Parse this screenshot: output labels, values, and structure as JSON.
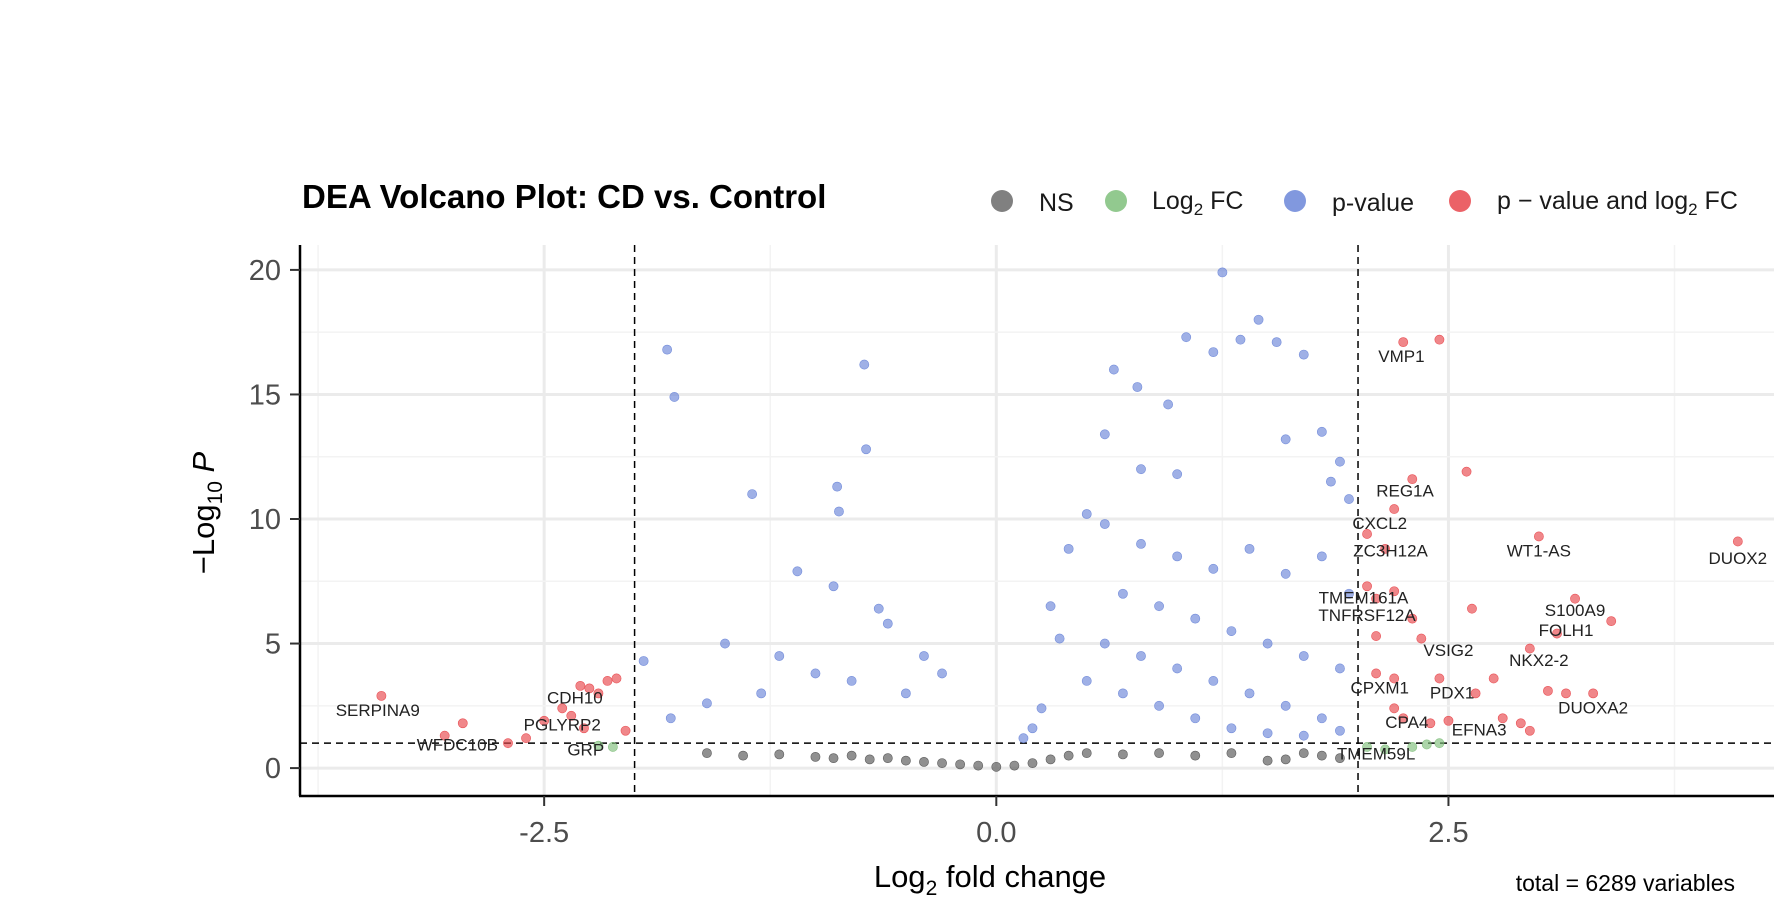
{
  "chart_data": {
    "type": "scatter",
    "title": "DEA Volcano Plot: CD vs. Control",
    "xlabel": "Log",
    "xlabel_sub": "2",
    "xlabel_tail": " fold change",
    "ylabel": "−Log",
    "ylabel_sub": "10",
    "ylabel_tail": " P",
    "xlim": [
      -3.85,
      4.3
    ],
    "ylim": [
      -1.0,
      21.0
    ],
    "x_ticks": [
      -2.5,
      0.0,
      2.5
    ],
    "x_tick_labels": [
      "-2.5",
      "0.0",
      "2.5"
    ],
    "y_ticks": [
      0,
      5,
      10,
      15,
      20
    ],
    "y_tick_labels": [
      "0",
      "5",
      "10",
      "15",
      "20"
    ],
    "grid": true,
    "legend_position": "top",
    "fc_cutoff": 2.0,
    "p_cutoff_neglog10": 1.0,
    "caption": "total = 6289 variables",
    "total_variables": 6289,
    "series": [
      {
        "name": "NS",
        "color": "#555555",
        "points": [
          [
            -1.6,
            0.6
          ],
          [
            -1.4,
            0.5
          ],
          [
            -1.2,
            0.55
          ],
          [
            -1.0,
            0.45
          ],
          [
            -0.9,
            0.4
          ],
          [
            -0.8,
            0.5
          ],
          [
            -0.7,
            0.35
          ],
          [
            -0.6,
            0.4
          ],
          [
            -0.5,
            0.3
          ],
          [
            -0.4,
            0.25
          ],
          [
            -0.3,
            0.2
          ],
          [
            -0.2,
            0.15
          ],
          [
            -0.1,
            0.1
          ],
          [
            0.0,
            0.05
          ],
          [
            0.1,
            0.1
          ],
          [
            0.2,
            0.2
          ],
          [
            0.3,
            0.35
          ],
          [
            0.4,
            0.5
          ],
          [
            0.5,
            0.6
          ],
          [
            0.7,
            0.55
          ],
          [
            0.9,
            0.6
          ],
          [
            1.1,
            0.5
          ],
          [
            1.3,
            0.6
          ],
          [
            1.5,
            0.3
          ],
          [
            1.6,
            0.35
          ],
          [
            1.7,
            0.6
          ],
          [
            1.8,
            0.5
          ],
          [
            1.9,
            0.4
          ]
        ]
      },
      {
        "name": "Log",
        "name_sub": "2",
        "name_tail": " FC",
        "color": "#7fbf7b",
        "points": [
          [
            -2.12,
            0.85
          ],
          [
            -2.2,
            0.9
          ],
          [
            2.05,
            0.85
          ],
          [
            2.15,
            0.75
          ],
          [
            2.3,
            0.85
          ],
          [
            2.45,
            1.0
          ],
          [
            2.38,
            0.95
          ]
        ]
      },
      {
        "name": "p-value",
        "color": "#6b86d8",
        "points": [
          [
            -1.82,
            16.8
          ],
          [
            -1.78,
            14.9
          ],
          [
            -0.73,
            16.2
          ],
          [
            -0.72,
            12.8
          ],
          [
            -1.35,
            11.0
          ],
          [
            -0.88,
            11.3
          ],
          [
            -0.87,
            10.3
          ],
          [
            -1.1,
            7.9
          ],
          [
            -0.9,
            7.3
          ],
          [
            -0.65,
            6.4
          ],
          [
            -1.5,
            5.0
          ],
          [
            -1.95,
            4.3
          ],
          [
            -1.2,
            4.5
          ],
          [
            -0.6,
            5.8
          ],
          [
            -0.4,
            4.5
          ],
          [
            -0.3,
            3.8
          ],
          [
            -0.5,
            3.0
          ],
          [
            -0.8,
            3.5
          ],
          [
            -1.0,
            3.8
          ],
          [
            -1.3,
            3.0
          ],
          [
            -1.6,
            2.6
          ],
          [
            -1.8,
            2.0
          ],
          [
            0.65,
            16.0
          ],
          [
            0.78,
            15.3
          ],
          [
            1.05,
            17.3
          ],
          [
            1.25,
            19.9
          ],
          [
            1.35,
            17.2
          ],
          [
            1.45,
            18.0
          ],
          [
            1.55,
            17.1
          ],
          [
            1.2,
            16.7
          ],
          [
            1.7,
            16.6
          ],
          [
            0.95,
            14.6
          ],
          [
            0.6,
            13.4
          ],
          [
            1.6,
            13.2
          ],
          [
            1.8,
            13.5
          ],
          [
            1.9,
            12.3
          ],
          [
            1.95,
            10.8
          ],
          [
            1.85,
            11.5
          ],
          [
            0.8,
            12.0
          ],
          [
            1.0,
            11.8
          ],
          [
            0.5,
            10.2
          ],
          [
            0.4,
            8.8
          ],
          [
            0.3,
            6.5
          ],
          [
            0.35,
            5.2
          ],
          [
            0.6,
            9.8
          ],
          [
            0.8,
            9.0
          ],
          [
            1.0,
            8.5
          ],
          [
            1.2,
            8.0
          ],
          [
            1.4,
            8.8
          ],
          [
            1.6,
            7.8
          ],
          [
            1.8,
            8.5
          ],
          [
            1.95,
            7.0
          ],
          [
            0.7,
            7.0
          ],
          [
            0.9,
            6.5
          ],
          [
            1.1,
            6.0
          ],
          [
            1.3,
            5.5
          ],
          [
            1.5,
            5.0
          ],
          [
            1.7,
            4.5
          ],
          [
            1.9,
            4.0
          ],
          [
            0.6,
            5.0
          ],
          [
            0.8,
            4.5
          ],
          [
            1.0,
            4.0
          ],
          [
            1.2,
            3.5
          ],
          [
            1.4,
            3.0
          ],
          [
            1.6,
            2.5
          ],
          [
            1.8,
            2.0
          ],
          [
            0.5,
            3.5
          ],
          [
            0.7,
            3.0
          ],
          [
            0.9,
            2.5
          ],
          [
            1.1,
            2.0
          ],
          [
            1.3,
            1.6
          ],
          [
            1.5,
            1.4
          ],
          [
            1.7,
            1.3
          ],
          [
            1.9,
            1.5
          ],
          [
            0.25,
            2.4
          ],
          [
            0.2,
            1.6
          ],
          [
            0.15,
            1.2
          ]
        ]
      },
      {
        "name": "p − value and log",
        "name_sub": "2",
        "name_tail": " FC",
        "color": "#e8474c",
        "points": [
          [
            -3.4,
            2.9
          ],
          [
            -3.05,
            1.3
          ],
          [
            -2.95,
            1.8
          ],
          [
            -2.7,
            1.0
          ],
          [
            -2.6,
            1.2
          ],
          [
            -2.5,
            1.9
          ],
          [
            -2.4,
            2.4
          ],
          [
            -2.35,
            2.1
          ],
          [
            -2.3,
            3.3
          ],
          [
            -2.25,
            3.2
          ],
          [
            -2.2,
            3.0
          ],
          [
            -2.15,
            3.5
          ],
          [
            -2.1,
            3.6
          ],
          [
            -2.05,
            1.5
          ],
          [
            -2.28,
            1.6
          ],
          [
            2.25,
            17.1
          ],
          [
            2.45,
            17.2
          ],
          [
            2.6,
            11.9
          ],
          [
            2.3,
            11.6
          ],
          [
            2.2,
            10.4
          ],
          [
            2.05,
            9.4
          ],
          [
            2.15,
            8.8
          ],
          [
            3.0,
            9.3
          ],
          [
            4.1,
            9.1
          ],
          [
            2.05,
            7.3
          ],
          [
            2.2,
            7.1
          ],
          [
            2.63,
            6.4
          ],
          [
            3.2,
            6.8
          ],
          [
            3.4,
            5.9
          ],
          [
            3.1,
            5.4
          ],
          [
            2.1,
            6.8
          ],
          [
            2.3,
            6.0
          ],
          [
            2.1,
            5.3
          ],
          [
            2.35,
            5.2
          ],
          [
            2.1,
            3.8
          ],
          [
            2.2,
            3.6
          ],
          [
            2.45,
            3.6
          ],
          [
            2.65,
            3.0
          ],
          [
            2.95,
            4.8
          ],
          [
            2.75,
            3.6
          ],
          [
            3.05,
            3.1
          ],
          [
            3.15,
            3.0
          ],
          [
            3.3,
            3.0
          ],
          [
            2.2,
            2.4
          ],
          [
            2.25,
            2.0
          ],
          [
            2.4,
            1.8
          ],
          [
            2.5,
            1.9
          ],
          [
            2.8,
            2.0
          ],
          [
            2.9,
            1.8
          ],
          [
            2.95,
            1.5
          ]
        ]
      }
    ],
    "annotations": [
      {
        "text": "VMP1",
        "x": 2.24,
        "y": 16.3
      },
      {
        "text": "REG1A",
        "x": 2.26,
        "y": 10.9
      },
      {
        "text": "CXCL2",
        "x": 2.12,
        "y": 9.6
      },
      {
        "text": "ZC3H12A",
        "x": 2.18,
        "y": 8.5
      },
      {
        "text": "WT1-AS",
        "x": 3.0,
        "y": 8.5
      },
      {
        "text": "DUOX2",
        "x": 4.1,
        "y": 8.2
      },
      {
        "text": "TMEM161A",
        "x": 2.03,
        "y": 6.6
      },
      {
        "text": "TNFRSF12A",
        "x": 2.05,
        "y": 5.9
      },
      {
        "text": "S100A9",
        "x": 3.2,
        "y": 6.1
      },
      {
        "text": "FOLH1",
        "x": 3.15,
        "y": 5.3
      },
      {
        "text": "VSIG2",
        "x": 2.5,
        "y": 4.5
      },
      {
        "text": "NKX2-2",
        "x": 3.0,
        "y": 4.1
      },
      {
        "text": "CPXM1",
        "x": 2.12,
        "y": 3.0
      },
      {
        "text": "PDX1",
        "x": 2.52,
        "y": 2.8
      },
      {
        "text": "DUOXA2",
        "x": 3.3,
        "y": 2.2
      },
      {
        "text": "CDH10",
        "x": -2.33,
        "y": 2.6
      },
      {
        "text": "SERPINA9",
        "x": -3.42,
        "y": 2.1
      },
      {
        "text": "PGLYRP2",
        "x": -2.4,
        "y": 1.5
      },
      {
        "text": "WFDC10B",
        "x": -2.98,
        "y": 0.7
      },
      {
        "text": "GRP",
        "x": -2.27,
        "y": 0.5
      },
      {
        "text": "CPA4",
        "x": 2.27,
        "y": 1.6
      },
      {
        "text": "EFNA3",
        "x": 2.67,
        "y": 1.3
      },
      {
        "text": "TMEM59L",
        "x": 2.1,
        "y": 0.35
      }
    ]
  }
}
